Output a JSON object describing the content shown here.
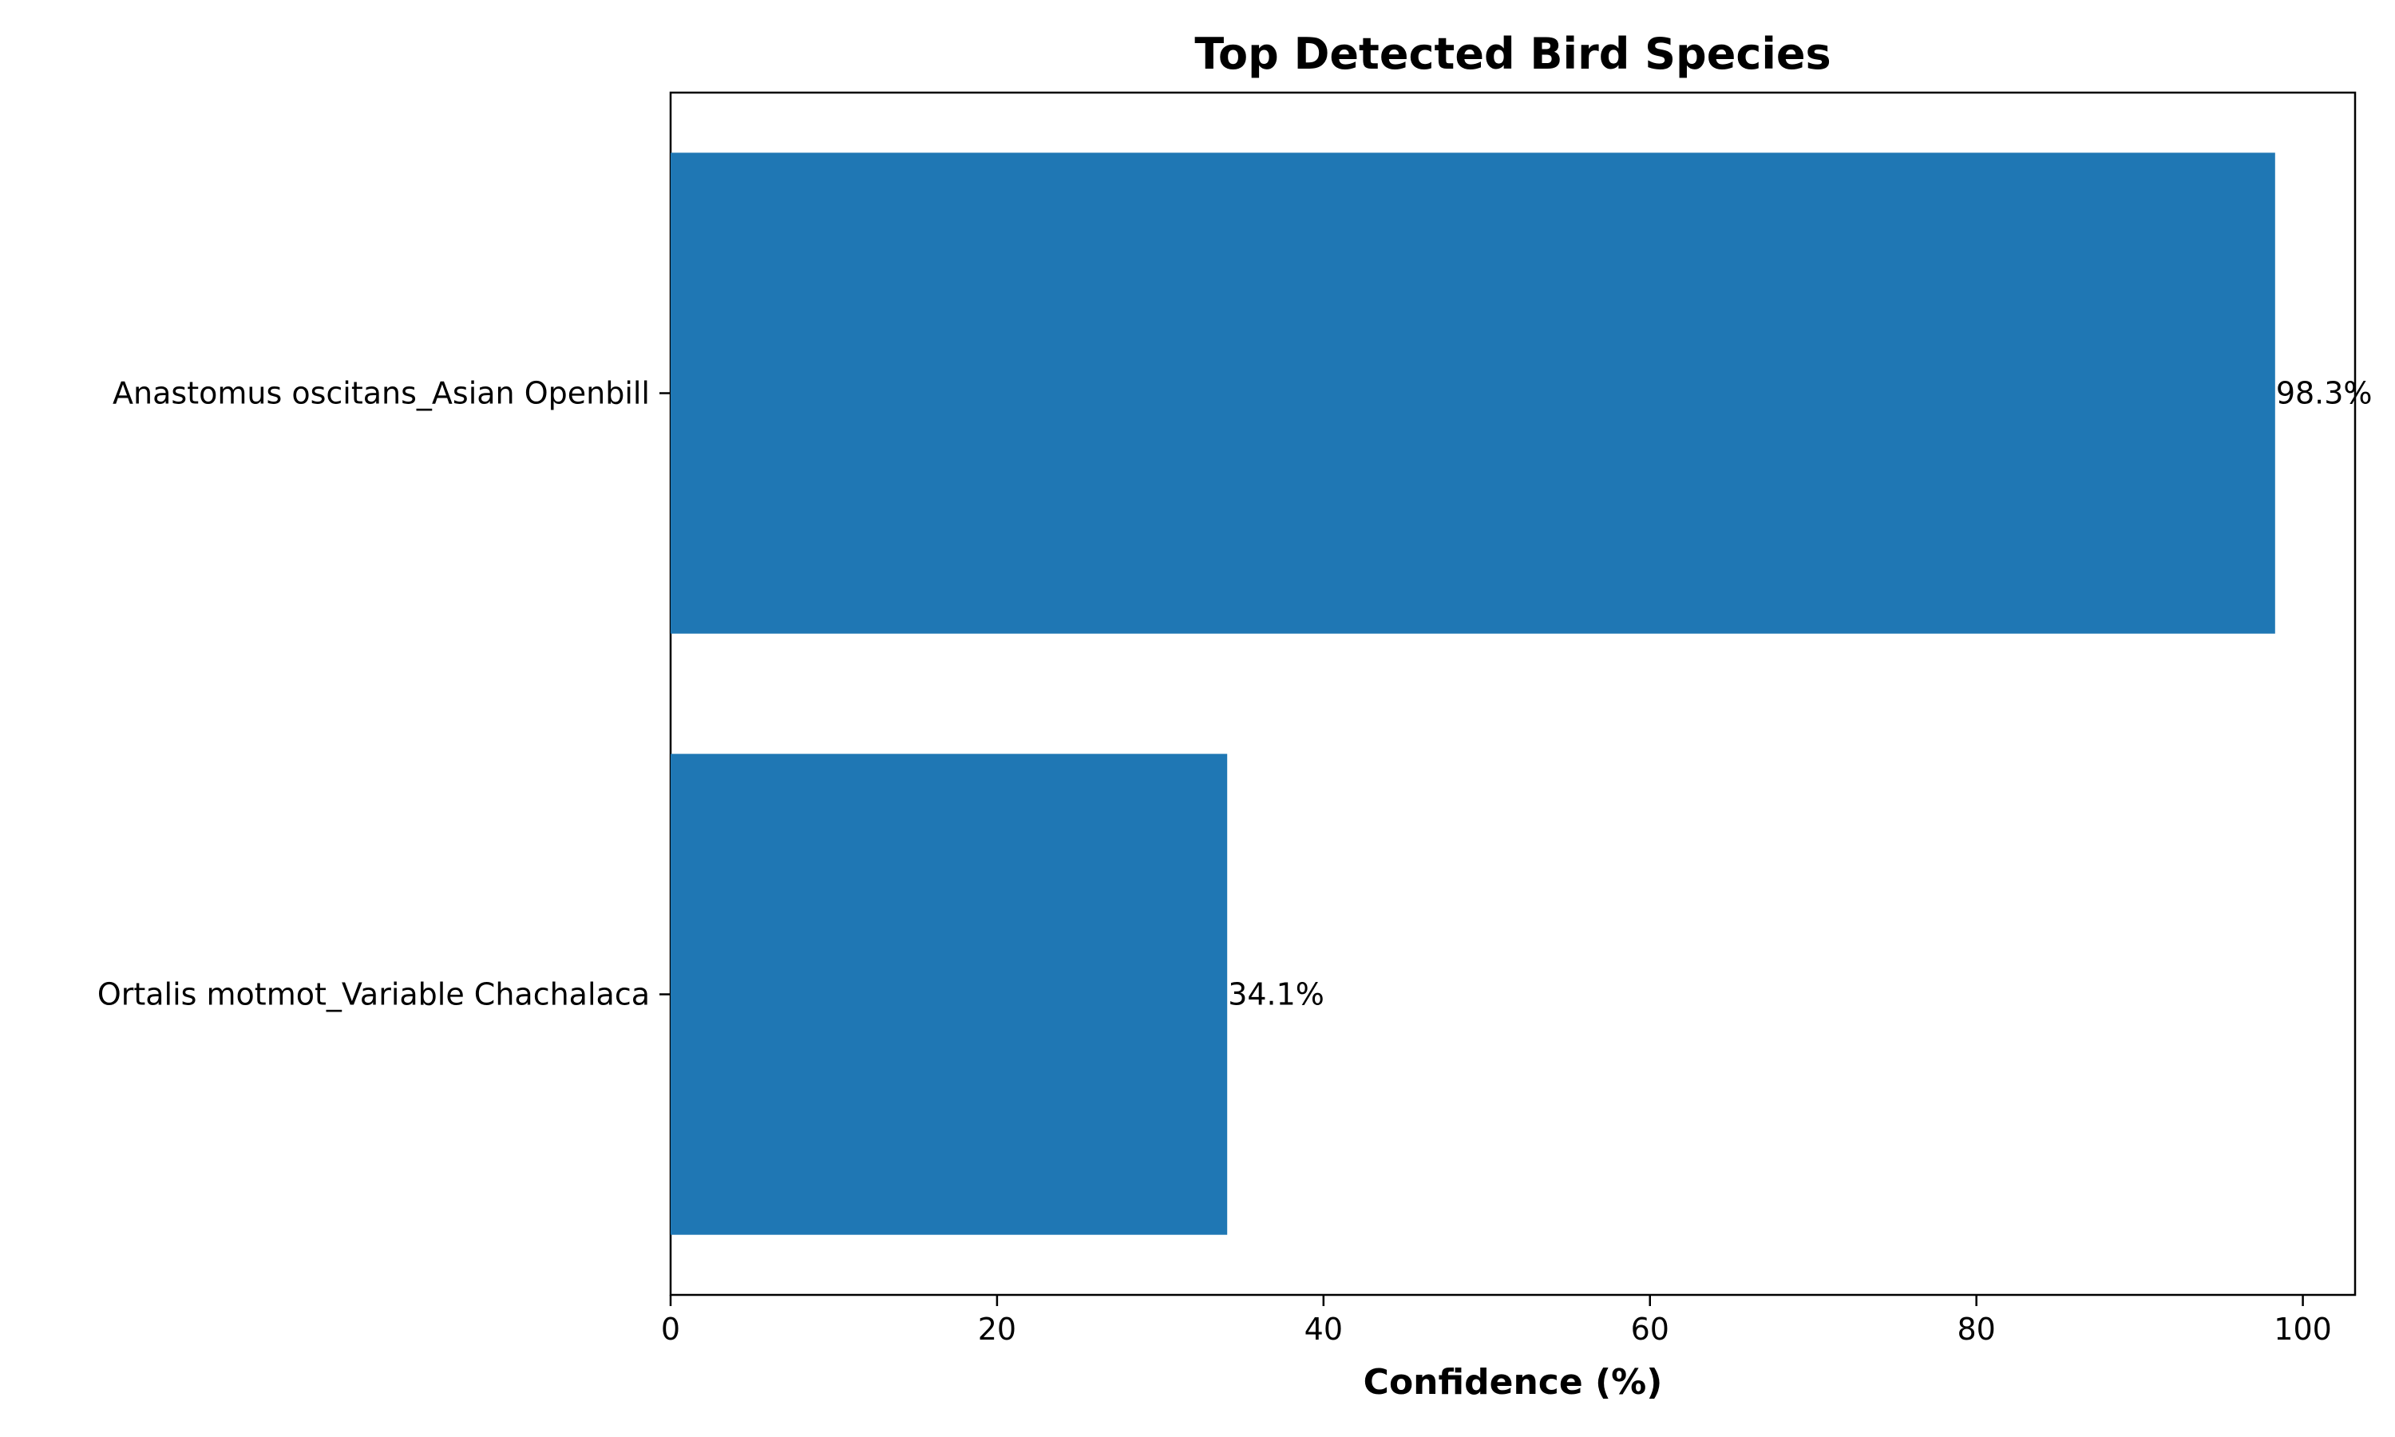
{
  "chart_data": {
    "type": "bar",
    "orientation": "horizontal",
    "title": "Top Detected Bird Species",
    "xlabel": "Confidence (%)",
    "ylabel": "",
    "categories": [
      "Anastomus oscitans_Asian Openbill",
      "Ortalis motmot_Variable Chachalaca"
    ],
    "values": [
      98.3,
      34.1
    ],
    "data_labels": [
      "98.3%",
      "34.1%"
    ],
    "xlim": [
      0,
      103.2
    ],
    "xticks": [
      0,
      20,
      40,
      60,
      80,
      100
    ],
    "xtick_labels": [
      "0",
      "20",
      "40",
      "60",
      "80",
      "100"
    ],
    "grid": false,
    "legend": "none",
    "bar_color": "#1f77b4"
  }
}
